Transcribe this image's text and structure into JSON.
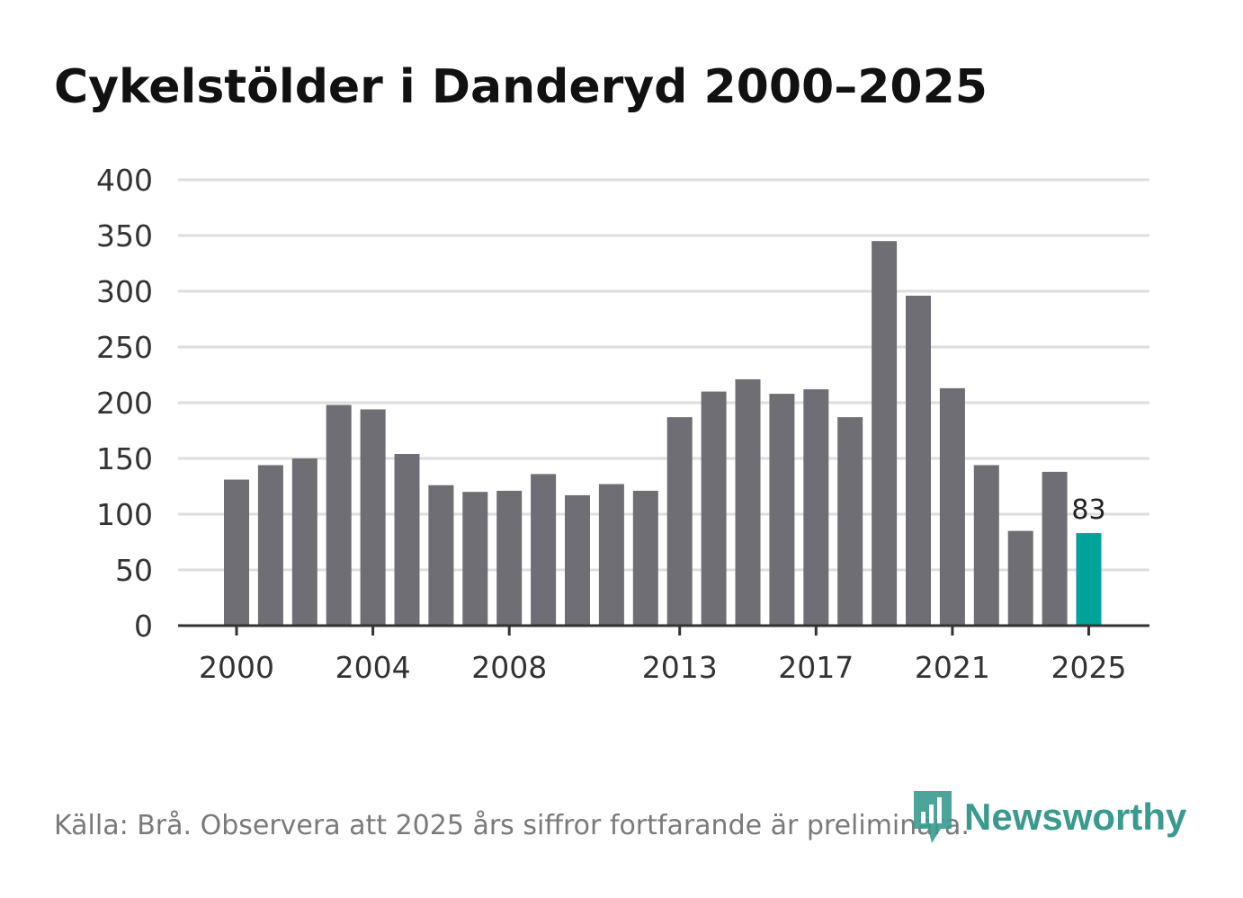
{
  "chart_data": {
    "type": "bar",
    "title": "Cykelstölder i Danderyd 2000–2025",
    "xlabel": "",
    "ylabel": "",
    "ylim": [
      0,
      400
    ],
    "yticks": [
      0,
      50,
      100,
      150,
      200,
      250,
      300,
      350,
      400
    ],
    "ytick_labels": [
      "0",
      "50",
      "100",
      "150",
      "200",
      "250",
      "300",
      "350",
      "400"
    ],
    "xtick_labels": [
      "2000",
      "2004",
      "2008",
      "2013",
      "2017",
      "2021",
      "2025"
    ],
    "grid": true,
    "categories": [
      "2000",
      "2001",
      "2002",
      "2003",
      "2004",
      "2005",
      "2006",
      "2007",
      "2008",
      "2009",
      "2010",
      "2011",
      "2012",
      "2013",
      "2014",
      "2015",
      "2016",
      "2017",
      "2018",
      "2019",
      "2020",
      "2021",
      "2022",
      "2023",
      "2024",
      "2025"
    ],
    "values": [
      131,
      144,
      150,
      198,
      194,
      154,
      126,
      120,
      121,
      136,
      117,
      127,
      121,
      187,
      210,
      221,
      208,
      212,
      187,
      345,
      296,
      213,
      144,
      85,
      138,
      83
    ],
    "highlight": {
      "category": "2025",
      "value": 83,
      "label": "83"
    },
    "colors": {
      "bar": "#6f6e75",
      "highlight": "#00a39a",
      "grid": "#dedede",
      "axis": "#333333"
    }
  },
  "footer": {
    "source": "Källa: Brå. Observera att 2025 års siffror fortfarande är preliminära."
  },
  "brand": {
    "name": "Newsworthy",
    "icon": "newsworthy-logo-icon",
    "color": "#3a9a8e"
  }
}
